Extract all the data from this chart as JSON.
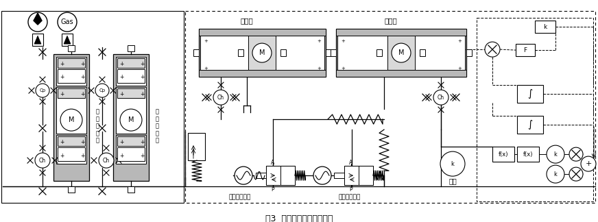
{
  "title": "图3  压射液压系统仿真模型",
  "title_fontsize": 9,
  "bg_color": "#ffffff",
  "fig_width": 8.72,
  "fig_height": 3.24,
  "labels": {
    "gas": "Gas",
    "booster": "增压器",
    "injection_cyl": "压射缸",
    "acc1": "压\n射\n蓄\n能\n器",
    "acc2": "增\n压\n蓄\n能\n器",
    "booster_valve": "增压器进液阀",
    "injection_valve": "压射缸进液阀",
    "load": "负载",
    "F_label": "F",
    "k_label1": "k",
    "k_label2": "k",
    "k_label3": "k",
    "fx_label": "f(x)",
    "Cp": "Cp",
    "Ch": "Ch",
    "M": "M",
    "A": "A",
    "P": "P"
  },
  "colors": {
    "gray_fill": "#b8b8b8",
    "hatch_fill": "#d8d8d8",
    "white": "#ffffff",
    "black": "#000000",
    "line": "#000000"
  }
}
